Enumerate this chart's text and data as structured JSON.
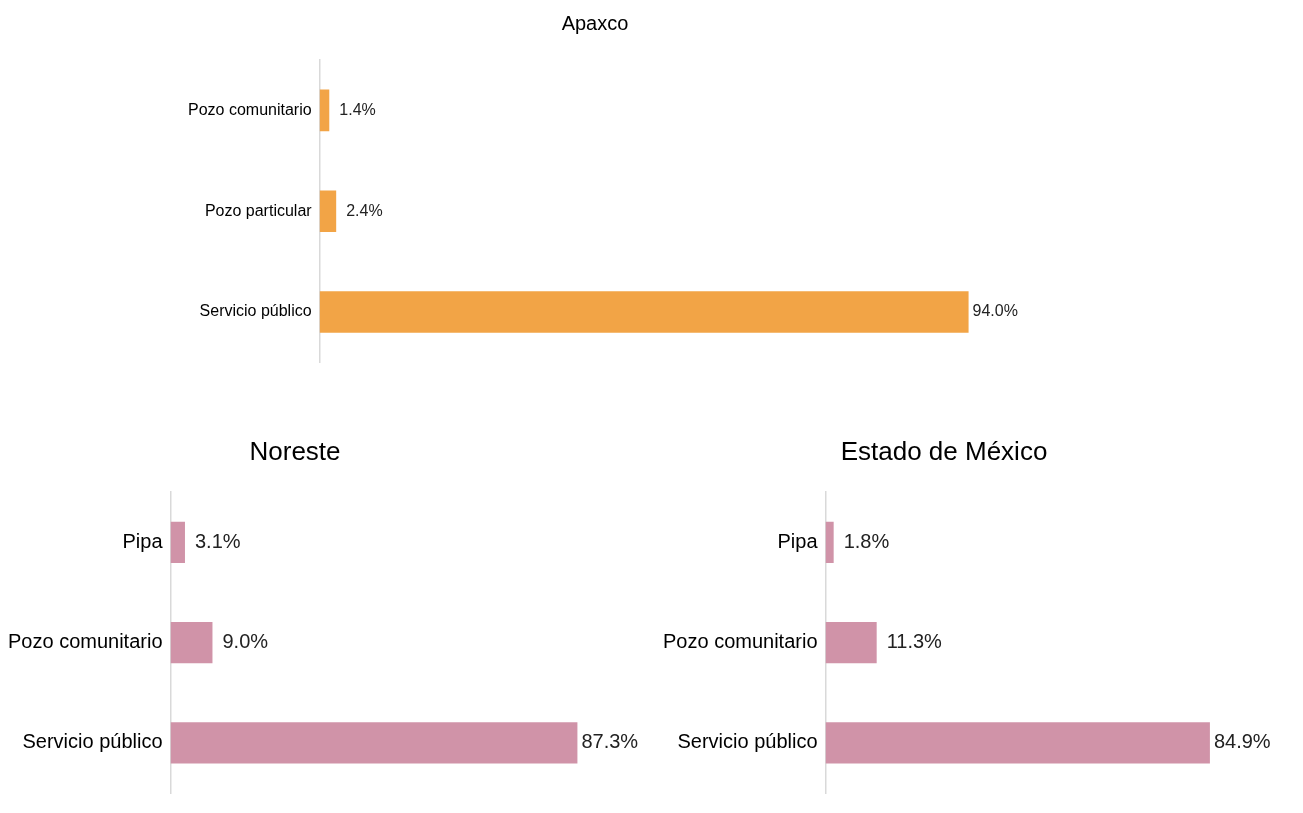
{
  "chart_data": [
    {
      "type": "bar",
      "orientation": "horizontal",
      "title": "Apaxco",
      "categories": [
        "Pozo comunitario",
        "Pozo particular",
        "Servicio público"
      ],
      "values": [
        1.4,
        2.4,
        94.0
      ],
      "value_labels": [
        "1.4%",
        "2.4%",
        "94.0%"
      ],
      "color": "#f2a446",
      "grid": false,
      "tick_labels": "y",
      "legend": false
    },
    {
      "type": "bar",
      "orientation": "horizontal",
      "title": "Noreste",
      "categories": [
        "Pipa",
        "Pozo comunitario",
        "Servicio público"
      ],
      "values": [
        3.1,
        9.0,
        87.3
      ],
      "value_labels": [
        "3.1%",
        "9.0%",
        "87.3%"
      ],
      "color": "#d093a8",
      "grid": false,
      "tick_labels": "y",
      "legend": false
    },
    {
      "type": "bar",
      "orientation": "horizontal",
      "title": "Estado de México",
      "categories": [
        "Pipa",
        "Pozo comunitario",
        "Servicio público"
      ],
      "values": [
        1.8,
        11.3,
        84.9
      ],
      "value_labels": [
        "1.8%",
        "11.3%",
        "84.9%"
      ],
      "color": "#d093a8",
      "grid": false,
      "tick_labels": "y",
      "legend": false
    }
  ]
}
